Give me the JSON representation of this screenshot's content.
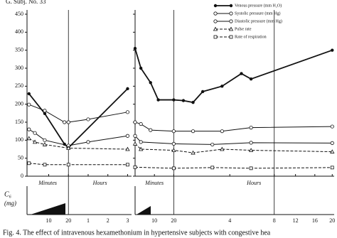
{
  "chart_data": [
    {
      "type": "line",
      "title": "G. Subj. No. 33",
      "xlim": [
        -1,
        52
      ],
      "ylim": [
        0,
        450
      ],
      "xticks": [
        {
          "value": 10,
          "label": "10"
        },
        {
          "value": 20,
          "label": "20"
        },
        {
          "value": 30,
          "label": "1"
        },
        {
          "value": 40,
          "label": "2"
        },
        {
          "value": 50,
          "label": "3"
        }
      ],
      "yticks": [
        0,
        50,
        100,
        150,
        200,
        250,
        300,
        350,
        400,
        450
      ],
      "x_section_labels": [
        "Minutes",
        "Hours"
      ],
      "vlines": [
        20
      ],
      "series": [
        {
          "name": "Venous pressure (mm H₂O)",
          "color": "#111",
          "marker": "dot",
          "dash": "solid",
          "width": 1.8,
          "x": [
            0,
            8,
            18,
            20,
            50
          ],
          "values": [
            229,
            174,
            89,
            79,
            243
          ]
        },
        {
          "name": "Systolic pressure (mm Hg)",
          "color": "#111",
          "marker": "circle",
          "dash": "solid",
          "width": 1,
          "x": [
            0,
            8,
            18,
            20,
            30,
            50
          ],
          "values": [
            199,
            182,
            150,
            150,
            158,
            178
          ]
        },
        {
          "name": "Diastolic pressure (mm Hg)",
          "color": "#111",
          "marker": "circle",
          "dash": "solid",
          "width": 1,
          "x": [
            0,
            3,
            8,
            20,
            30,
            50
          ],
          "values": [
            130,
            120,
            100,
            85,
            95,
            112
          ]
        },
        {
          "name": "Pulse rate",
          "color": "#111",
          "marker": "triangle",
          "dash": "dashed",
          "width": 1,
          "x": [
            0,
            3,
            8,
            20,
            50
          ],
          "values": [
            105,
            95,
            88,
            78,
            75
          ]
        },
        {
          "name": "Rate of respiration",
          "color": "#111",
          "marker": "square",
          "dash": "dashed",
          "width": 1,
          "x": [
            0,
            8,
            20,
            50
          ],
          "values": [
            36,
            32,
            32,
            32
          ]
        }
      ]
    },
    {
      "type": "line",
      "xlim": [
        0,
        103
      ],
      "ylim": [
        0,
        450
      ],
      "xticks": [
        {
          "value": 10,
          "label": "10"
        },
        {
          "value": 20,
          "label": "20"
        },
        {
          "value": 49,
          "label": "4"
        },
        {
          "value": 72,
          "label": "8"
        },
        {
          "value": 83,
          "label": "12"
        },
        {
          "value": 93,
          "label": "16"
        },
        {
          "value": 102,
          "label": "20"
        }
      ],
      "yticks": [
        0,
        50,
        100,
        150,
        200,
        250,
        300,
        350,
        400,
        450
      ],
      "x_section_labels": [
        "Minutes",
        "Hours"
      ],
      "vlines": [
        20,
        72
      ],
      "series": [
        {
          "color": "#111",
          "marker": "dot",
          "dash": "solid",
          "width": 1.8,
          "x": [
            0,
            3,
            8,
            12,
            20,
            25,
            30,
            35,
            45,
            55,
            60,
            102
          ],
          "values": [
            355,
            300,
            260,
            212,
            212,
            210,
            205,
            235,
            250,
            285,
            270,
            350
          ]
        },
        {
          "color": "#111",
          "marker": "circle",
          "dash": "solid",
          "width": 1,
          "x": [
            0,
            3,
            8,
            20,
            30,
            45,
            60,
            102
          ],
          "values": [
            150,
            145,
            128,
            125,
            125,
            125,
            135,
            138
          ]
        },
        {
          "color": "#111",
          "marker": "circle",
          "dash": "solid",
          "width": 1,
          "x": [
            0,
            3,
            20,
            40,
            60,
            102
          ],
          "values": [
            112,
            95,
            90,
            88,
            93,
            92
          ]
        },
        {
          "color": "#111",
          "marker": "triangle",
          "dash": "dashed",
          "width": 1,
          "x": [
            0,
            3,
            20,
            30,
            45,
            60,
            102
          ],
          "values": [
            90,
            75,
            72,
            65,
            75,
            72,
            68
          ]
        },
        {
          "color": "#111",
          "marker": "square",
          "dash": "dashed",
          "width": 1,
          "x": [
            0,
            20,
            40,
            60,
            102
          ],
          "values": [
            25,
            22,
            24,
            22,
            24
          ]
        }
      ]
    }
  ],
  "c6_label": "C₆",
  "c6_unit": "(mg)",
  "caption": "Fig. 4. The effect of intravenous hexamethonium in hypertensive subjects with congestive hea"
}
